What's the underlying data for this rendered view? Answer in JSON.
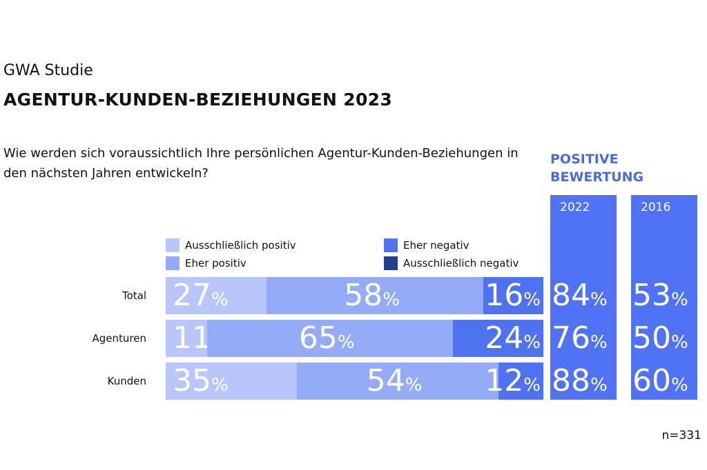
{
  "header": {
    "kicker": "GWA Studie",
    "title": "AGENTUR-KUNDEN-BEZIEHUNGEN 2023",
    "question": "Wie werden sich voraussichtlich Ihre persönlichen Agentur-Kunden-Beziehungen in den nächsten Jahren entwickeln?"
  },
  "chart_data": {
    "type": "bar",
    "orientation": "horizontal-stacked",
    "categories": [
      "Total",
      "Agenturen",
      "Kunden"
    ],
    "series": [
      {
        "name": "Ausschließlich positiv",
        "values": [
          27,
          11,
          35
        ],
        "color": "#b9c6fb"
      },
      {
        "name": "Eher positiv",
        "values": [
          58,
          65,
          54
        ],
        "color": "#94abf8"
      },
      {
        "name": "Eher negativ",
        "values": [
          16,
          24,
          12
        ],
        "color": "#4f72f0"
      },
      {
        "name": "Ausschließlich negativ",
        "values": [
          0,
          0,
          0
        ],
        "color": "#1f3f8f"
      }
    ],
    "unit": "%",
    "legend": "top",
    "positive_rating": {
      "title_line1": "POSITIVE",
      "title_line2": "BEWERTUNG",
      "color": "#5073f5",
      "columns": [
        {
          "year": "2022",
          "values": [
            84,
            76,
            88
          ]
        },
        {
          "year": "2016",
          "values": [
            53,
            50,
            60
          ]
        }
      ]
    },
    "note": "n=331"
  }
}
